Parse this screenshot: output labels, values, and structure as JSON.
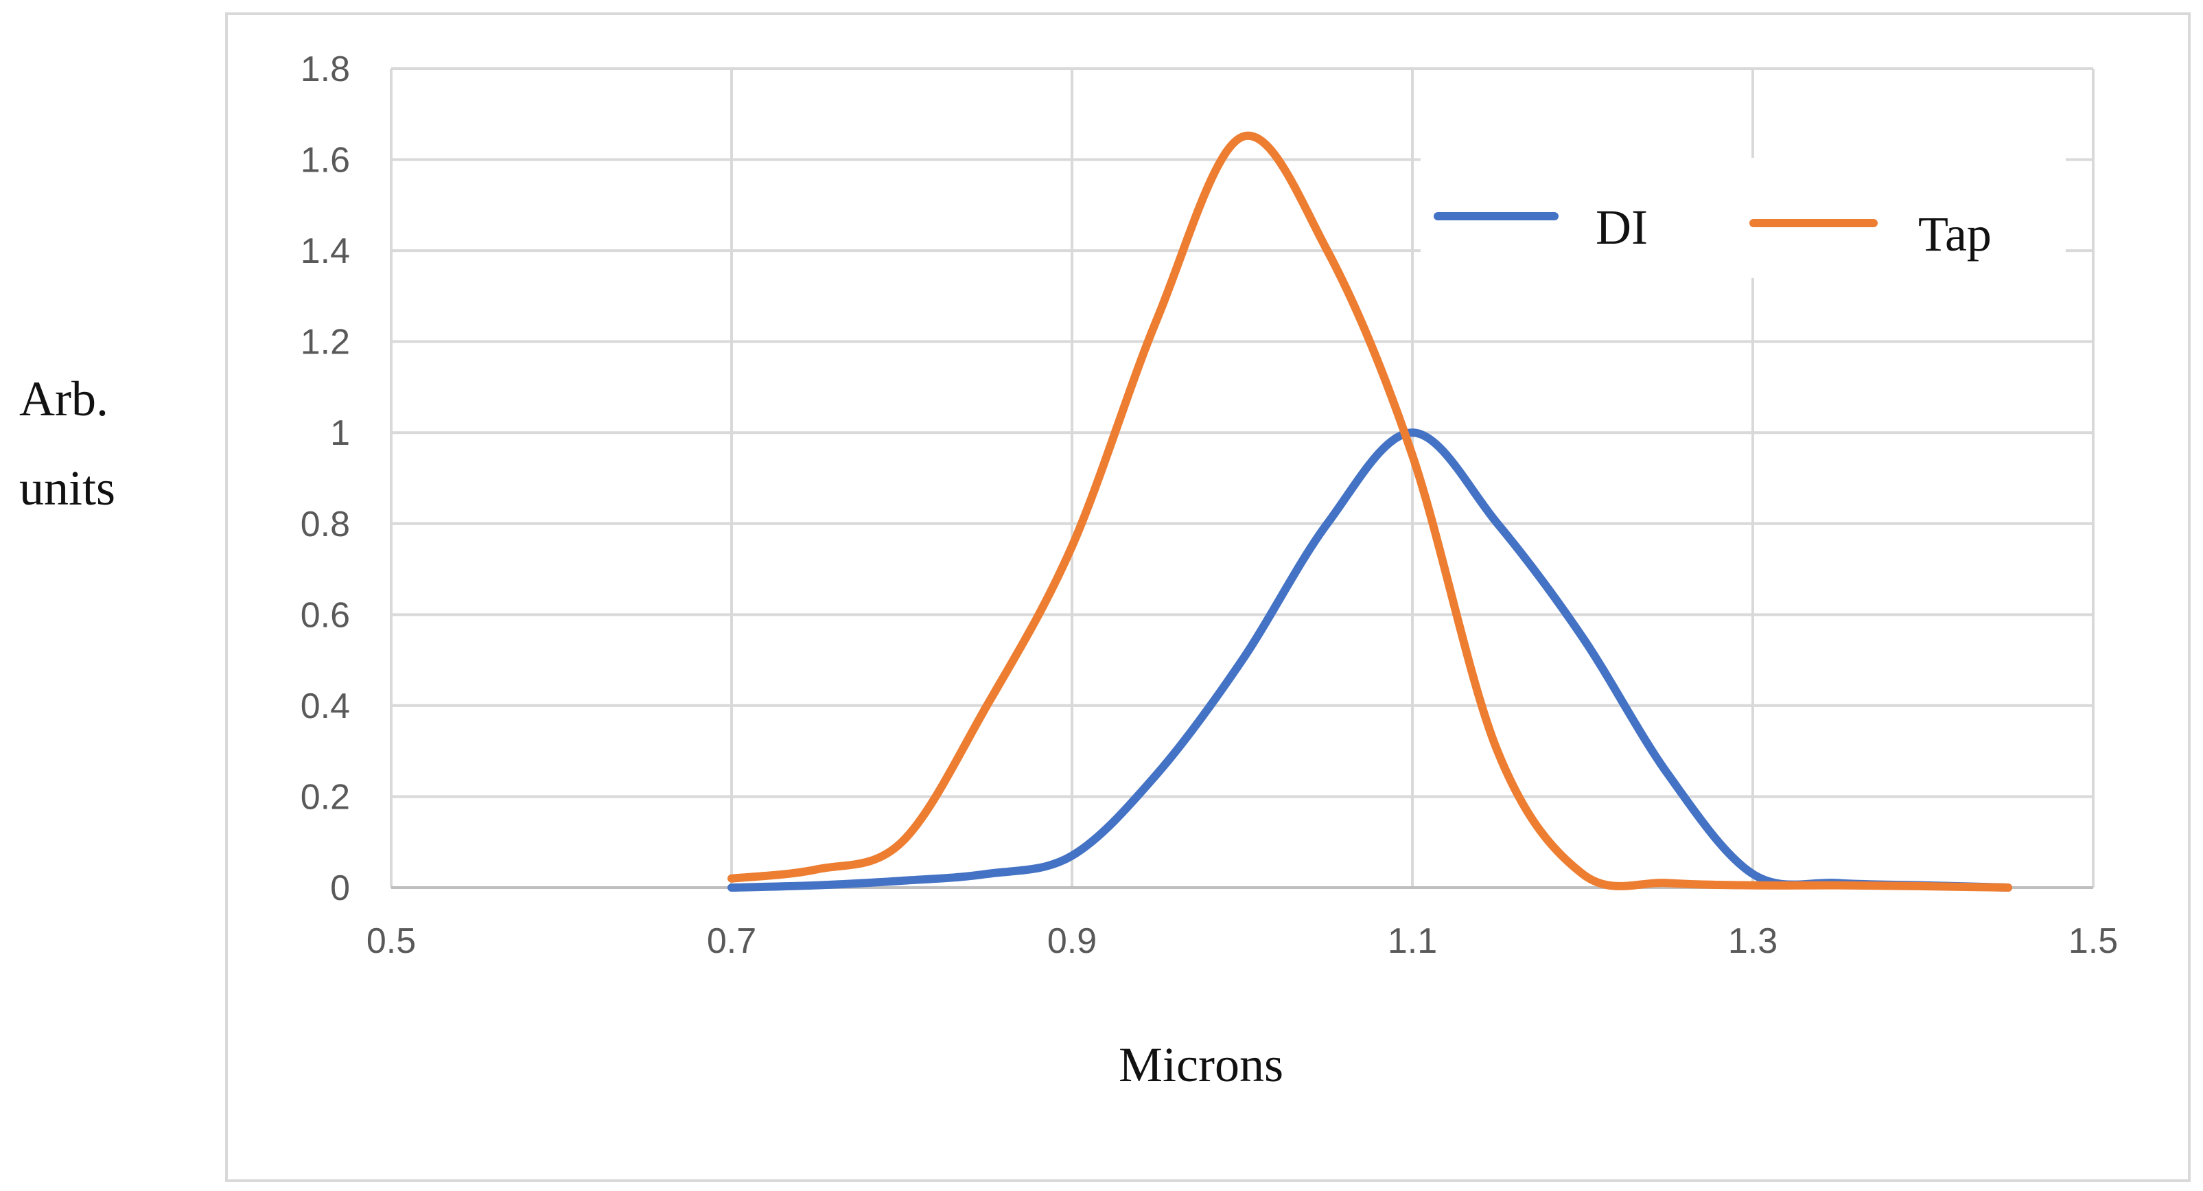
{
  "chart_data": {
    "type": "line",
    "title": "",
    "xlabel": "Microns",
    "ylabel_lines": [
      "Arb.",
      "units"
    ],
    "xlim": [
      0.5,
      1.5
    ],
    "ylim": [
      0,
      1.8
    ],
    "x_ticks": [
      "0.5",
      "0.7",
      "0.9",
      "1.1",
      "1.3",
      "1.5"
    ],
    "y_ticks": [
      "0",
      "0.2",
      "0.4",
      "0.6",
      "0.8",
      "1",
      "1.2",
      "1.4",
      "1.6",
      "1.8"
    ],
    "grid": true,
    "legend_position": "top-right",
    "series": [
      {
        "name": "DI",
        "color": "#4472C4",
        "x": [
          0.7,
          0.75,
          0.8,
          0.85,
          0.9,
          0.95,
          1.0,
          1.05,
          1.1,
          1.15,
          1.2,
          1.25,
          1.3,
          1.35,
          1.4,
          1.45
        ],
        "y": [
          0.0,
          0.005,
          0.015,
          0.03,
          0.07,
          0.25,
          0.5,
          0.8,
          1.0,
          0.8,
          0.55,
          0.25,
          0.03,
          0.01,
          0.005,
          0.0
        ]
      },
      {
        "name": "Tap",
        "color": "#ED7D31",
        "x": [
          0.7,
          0.75,
          0.8,
          0.85,
          0.9,
          0.95,
          1.0,
          1.05,
          1.1,
          1.15,
          1.2,
          1.25,
          1.3,
          1.35,
          1.4,
          1.45
        ],
        "y": [
          0.02,
          0.04,
          0.1,
          0.4,
          0.75,
          1.25,
          1.65,
          1.4,
          0.95,
          0.3,
          0.03,
          0.01,
          0.005,
          0.005,
          0.003,
          0.0
        ]
      }
    ]
  }
}
